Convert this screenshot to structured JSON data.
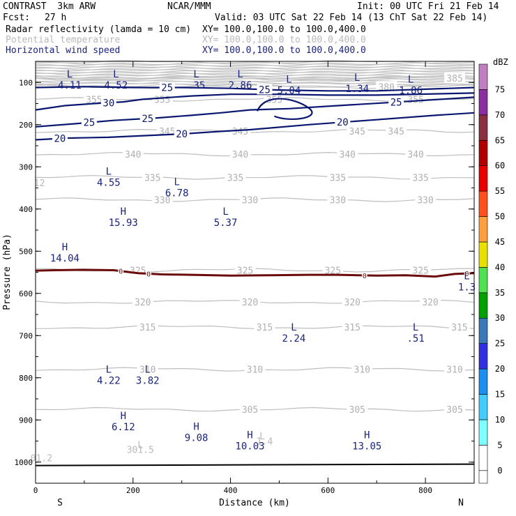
{
  "header": {
    "model": "CONTRAST  3km ARW",
    "center": "NCAR/MMM",
    "init": "Init: 00 UTC Fri 21 Feb 14",
    "fcst_label": "Fcst:",
    "fcst_value": "27 h",
    "valid": "Valid: 03 UTC Sat 22 Feb 14 (13 ChT Sat 22 Feb 14)",
    "fields": [
      {
        "name": "Radar reflectivity (lamda = 10 cm)",
        "xy": "XY= 100.0,100.0 to 100.0,400.0"
      },
      {
        "name": "Potential temperature",
        "xy": "XY= 100.0,100.0 to 100.0,400.0"
      },
      {
        "name": "Horizontal wind speed",
        "xy": "XY= 100.0,100.0 to 100.0,400.0"
      }
    ]
  },
  "chart_data": {
    "type": "cross-section",
    "xlabel": "Distance (km)",
    "ylabel": "Pressure (hPa)",
    "xlim": [
      0,
      900
    ],
    "ylim": [
      1050,
      50
    ],
    "x_ticks": [
      0,
      200,
      400,
      600,
      800
    ],
    "y_ticks": [
      100,
      200,
      300,
      400,
      500,
      600,
      700,
      800,
      900,
      1000
    ],
    "x_end_labels": {
      "left": "S",
      "right": "N"
    },
    "colorbar": {
      "unit": "dBZ",
      "levels": [
        {
          "label": "0",
          "color": "#ffffff"
        },
        {
          "label": "5",
          "color": "#7fffff"
        },
        {
          "label": "10",
          "color": "#44ccff"
        },
        {
          "label": "15",
          "color": "#1f8fef"
        },
        {
          "label": "20",
          "color": "#3030e0"
        },
        {
          "label": "25",
          "color": "#3a78b8"
        },
        {
          "label": "30",
          "color": "#00a000"
        },
        {
          "label": "35",
          "color": "#50e050"
        },
        {
          "label": "40",
          "color": "#e8e000"
        },
        {
          "label": "45",
          "color": "#ffa040"
        },
        {
          "label": "50",
          "color": "#ff5020"
        },
        {
          "label": "55",
          "color": "#e80000"
        },
        {
          "label": "60",
          "color": "#b00000"
        },
        {
          "label": "65",
          "color": "#8b3040"
        },
        {
          "label": "70",
          "color": "#8b2ea0"
        },
        {
          "label": "75",
          "color": "#c080c0"
        }
      ]
    },
    "theta_contours": [
      {
        "label": "345",
        "p": 215,
        "labels_x": [
          270,
          420,
          660,
          740
        ]
      },
      {
        "label": "340",
        "p": 270,
        "labels_x": [
          200,
          420,
          640,
          780
        ]
      },
      {
        "label": "335",
        "p": 325,
        "labels_x": [
          240,
          410,
          620,
          790
        ]
      },
      {
        "label": "330",
        "p": 378,
        "labels_x": [
          260,
          440,
          620,
          800
        ]
      },
      {
        "label": "325",
        "p": 545,
        "labels_x": [
          210,
          430,
          610,
          790
        ]
      },
      {
        "label": "320",
        "p": 620,
        "labels_x": [
          220,
          440,
          650,
          810
        ]
      },
      {
        "label": "315",
        "p": 680,
        "labels_x": [
          230,
          470,
          650,
          870
        ]
      },
      {
        "label": "310",
        "p": 780,
        "labels_x": [
          230,
          450,
          670,
          860
        ]
      },
      {
        "label": "305",
        "p": 875,
        "labels_x": [
          440,
          660,
          860
        ]
      },
      {
        "label": "355",
        "p": 140,
        "labels_x": [
          120,
          260,
          490,
          780
        ]
      },
      {
        "label": "380",
        "p": 110,
        "labels_x": [
          720
        ]
      },
      {
        "label": "385",
        "p": 90,
        "labels_x": [
          860
        ]
      }
    ],
    "theta_extra_labels": [
      {
        "text": "301.5",
        "x": 215,
        "p": 970
      },
      {
        "text": "01.2",
        "x": 12,
        "p": 990
      },
      {
        "text": "1.4",
        "x": 470,
        "p": 950
      },
      {
        "text": "12",
        "x": 8,
        "p": 338
      }
    ],
    "wind_contours": [
      {
        "label": "20",
        "points": [
          [
            0,
            236
          ],
          [
            60,
            232
          ],
          [
            150,
            230
          ],
          [
            300,
            222
          ],
          [
            380,
            216
          ],
          [
            440,
            212
          ],
          [
            480,
            208
          ],
          [
            560,
            200
          ],
          [
            680,
            190
          ],
          [
            820,
            178
          ],
          [
            900,
            172
          ]
        ],
        "labels_x": [
          50,
          300,
          630
        ]
      },
      {
        "label": "25",
        "points": [
          [
            0,
            205
          ],
          [
            80,
            198
          ],
          [
            160,
            190
          ],
          [
            250,
            184
          ],
          [
            320,
            178
          ],
          [
            380,
            172
          ],
          [
            440,
            165
          ],
          [
            520,
            162
          ],
          [
            620,
            155
          ],
          [
            720,
            148
          ],
          [
            900,
            135
          ]
        ],
        "labels_x": [
          110,
          230,
          740
        ]
      },
      {
        "label": "30",
        "points": [
          [
            0,
            165
          ],
          [
            60,
            155
          ],
          [
            120,
            150
          ],
          [
            180,
            146
          ],
          [
            220,
            140
          ],
          [
            320,
            132
          ],
          [
            400,
            128
          ],
          [
            500,
            128
          ],
          [
            600,
            130
          ],
          [
            700,
            130
          ],
          [
            900,
            125
          ]
        ],
        "labels_x": [
          150
        ]
      },
      {
        "label": "25",
        "points": [
          [
            0,
            112
          ],
          [
            100,
            110
          ],
          [
            200,
            112
          ],
          [
            300,
            112
          ],
          [
            400,
            114
          ],
          [
            500,
            118
          ],
          [
            600,
            120
          ],
          [
            700,
            120
          ],
          [
            800,
            116
          ],
          [
            900,
            112
          ]
        ],
        "labels_x": [
          270,
          470
        ]
      }
    ],
    "freezing_line": {
      "label": "0",
      "points": [
        [
          0,
          546
        ],
        [
          40,
          545
        ],
        [
          100,
          544
        ],
        [
          160,
          545
        ],
        [
          210,
          552
        ],
        [
          260,
          555
        ],
        [
          320,
          556
        ],
        [
          400,
          558
        ],
        [
          480,
          557
        ],
        [
          560,
          556
        ],
        [
          620,
          556
        ],
        [
          700,
          558
        ],
        [
          760,
          557
        ],
        [
          820,
          560
        ],
        [
          860,
          554
        ],
        [
          900,
          552
        ]
      ],
      "labels_x": [
        175,
        232,
        675,
        885
      ]
    },
    "surface_p": 1008,
    "extrema_wind": [
      {
        "type": "L",
        "value": "4.11",
        "x": 70,
        "p": 80
      },
      {
        "type": "L",
        "value": "4.52",
        "x": 165,
        "p": 80
      },
      {
        "type": "L",
        "value": ".35",
        "x": 330,
        "p": 80
      },
      {
        "type": "L",
        "value": "2.86",
        "x": 420,
        "p": 80
      },
      {
        "type": "L",
        "value": "5.04",
        "x": 520,
        "p": 92
      },
      {
        "type": "L",
        "value": "1.34",
        "x": 660,
        "p": 88
      },
      {
        "type": "L",
        "value": "1.86",
        "x": 770,
        "p": 92
      },
      {
        "type": "L",
        "value": "4.55",
        "x": 150,
        "p": 310
      },
      {
        "type": "L",
        "value": "6.78",
        "x": 290,
        "p": 335
      },
      {
        "type": "H",
        "value": "15.93",
        "x": 180,
        "p": 405
      },
      {
        "type": "L",
        "value": "5.37",
        "x": 390,
        "p": 405
      },
      {
        "type": "H",
        "value": "14.04",
        "x": 60,
        "p": 490
      },
      {
        "type": "L",
        "value": "1.3",
        "x": 885,
        "p": 558
      },
      {
        "type": "L",
        "value": "2.24",
        "x": 530,
        "p": 680
      },
      {
        "type": "L",
        "value": ".51",
        "x": 780,
        "p": 680
      },
      {
        "type": "L",
        "value": "4.22",
        "x": 150,
        "p": 780
      },
      {
        "type": "L",
        "value": "3.82",
        "x": 230,
        "p": 780
      },
      {
        "type": "H",
        "value": "6.12",
        "x": 180,
        "p": 890
      },
      {
        "type": "H",
        "value": "9.08",
        "x": 330,
        "p": 915
      },
      {
        "type": "H",
        "value": "10.03",
        "x": 440,
        "p": 935
      },
      {
        "type": "H",
        "value": "13.05",
        "x": 680,
        "p": 935
      }
    ],
    "extrema_theta": [
      {
        "type": "L",
        "x": 215,
        "p": 958
      },
      {
        "type": "L",
        "x": 465,
        "p": 938
      }
    ]
  }
}
